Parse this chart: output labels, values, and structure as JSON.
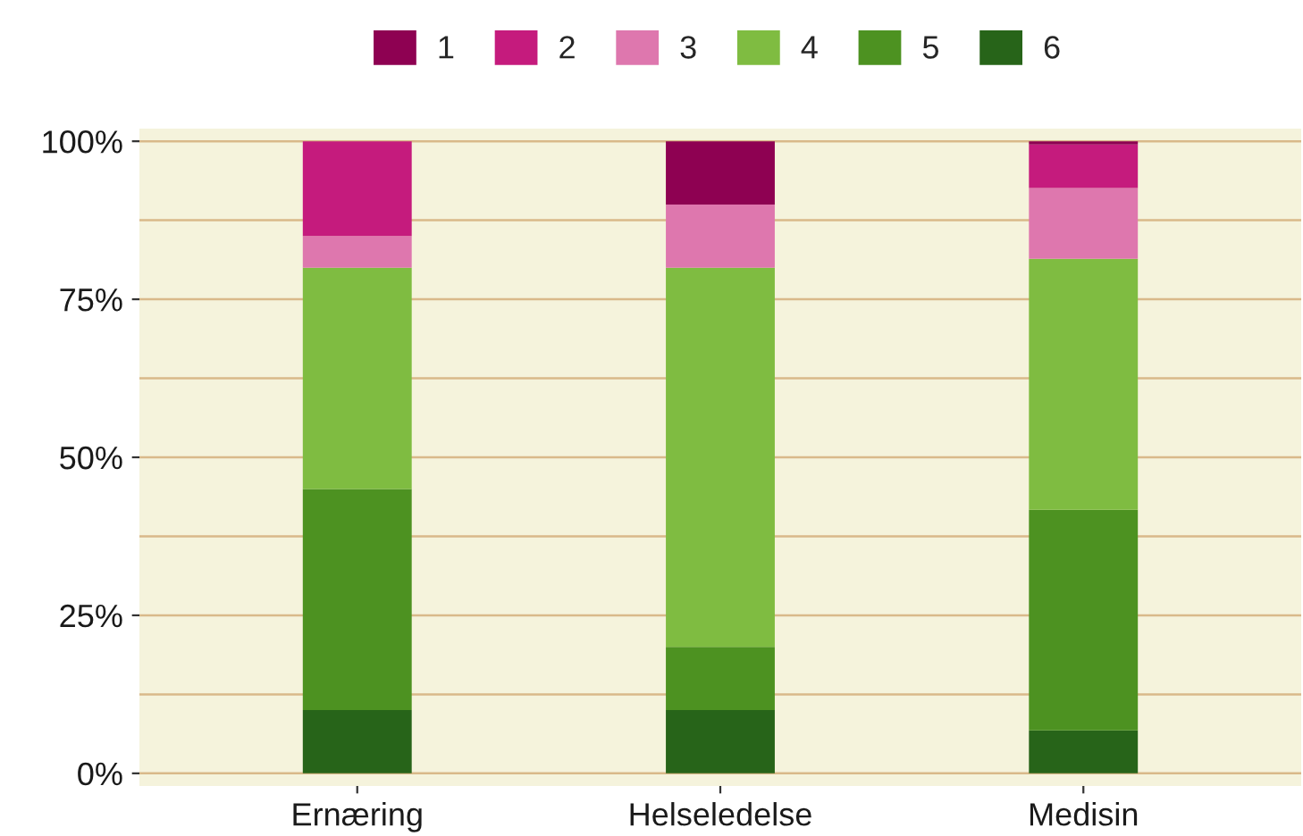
{
  "chart_data": {
    "type": "bar",
    "stacked": true,
    "categories": [
      "Ernæring",
      "Helseledelse",
      "Medisin"
    ],
    "series": [
      {
        "name": "6",
        "color": "#276419",
        "values": [
          10,
          10,
          6.8
        ]
      },
      {
        "name": "5",
        "color": "#4d9221",
        "values": [
          35,
          10,
          34.9
        ]
      },
      {
        "name": "4",
        "color": "#7fbc41",
        "values": [
          35,
          60,
          39.7
        ]
      },
      {
        "name": "3",
        "color": "#de77ae",
        "values": [
          5,
          10,
          11.2
        ]
      },
      {
        "name": "2",
        "color": "#c51b7d",
        "values": [
          15,
          0,
          6.9
        ]
      },
      {
        "name": "1",
        "color": "#8e0152",
        "values": [
          0,
          10,
          0.5
        ]
      }
    ],
    "ylim": [
      -2,
      102
    ],
    "yticks": [
      {
        "value": 0,
        "label": "0%"
      },
      {
        "value": 12.5,
        "label": null
      },
      {
        "value": 25,
        "label": "25%"
      },
      {
        "value": 37.5,
        "label": null
      },
      {
        "value": 50,
        "label": "50%"
      },
      {
        "value": 62.5,
        "label": null
      },
      {
        "value": 75,
        "label": "75%"
      },
      {
        "value": 87.5,
        "label": null
      },
      {
        "value": 100,
        "label": "100%"
      }
    ],
    "grid": "y",
    "legend": "top"
  }
}
